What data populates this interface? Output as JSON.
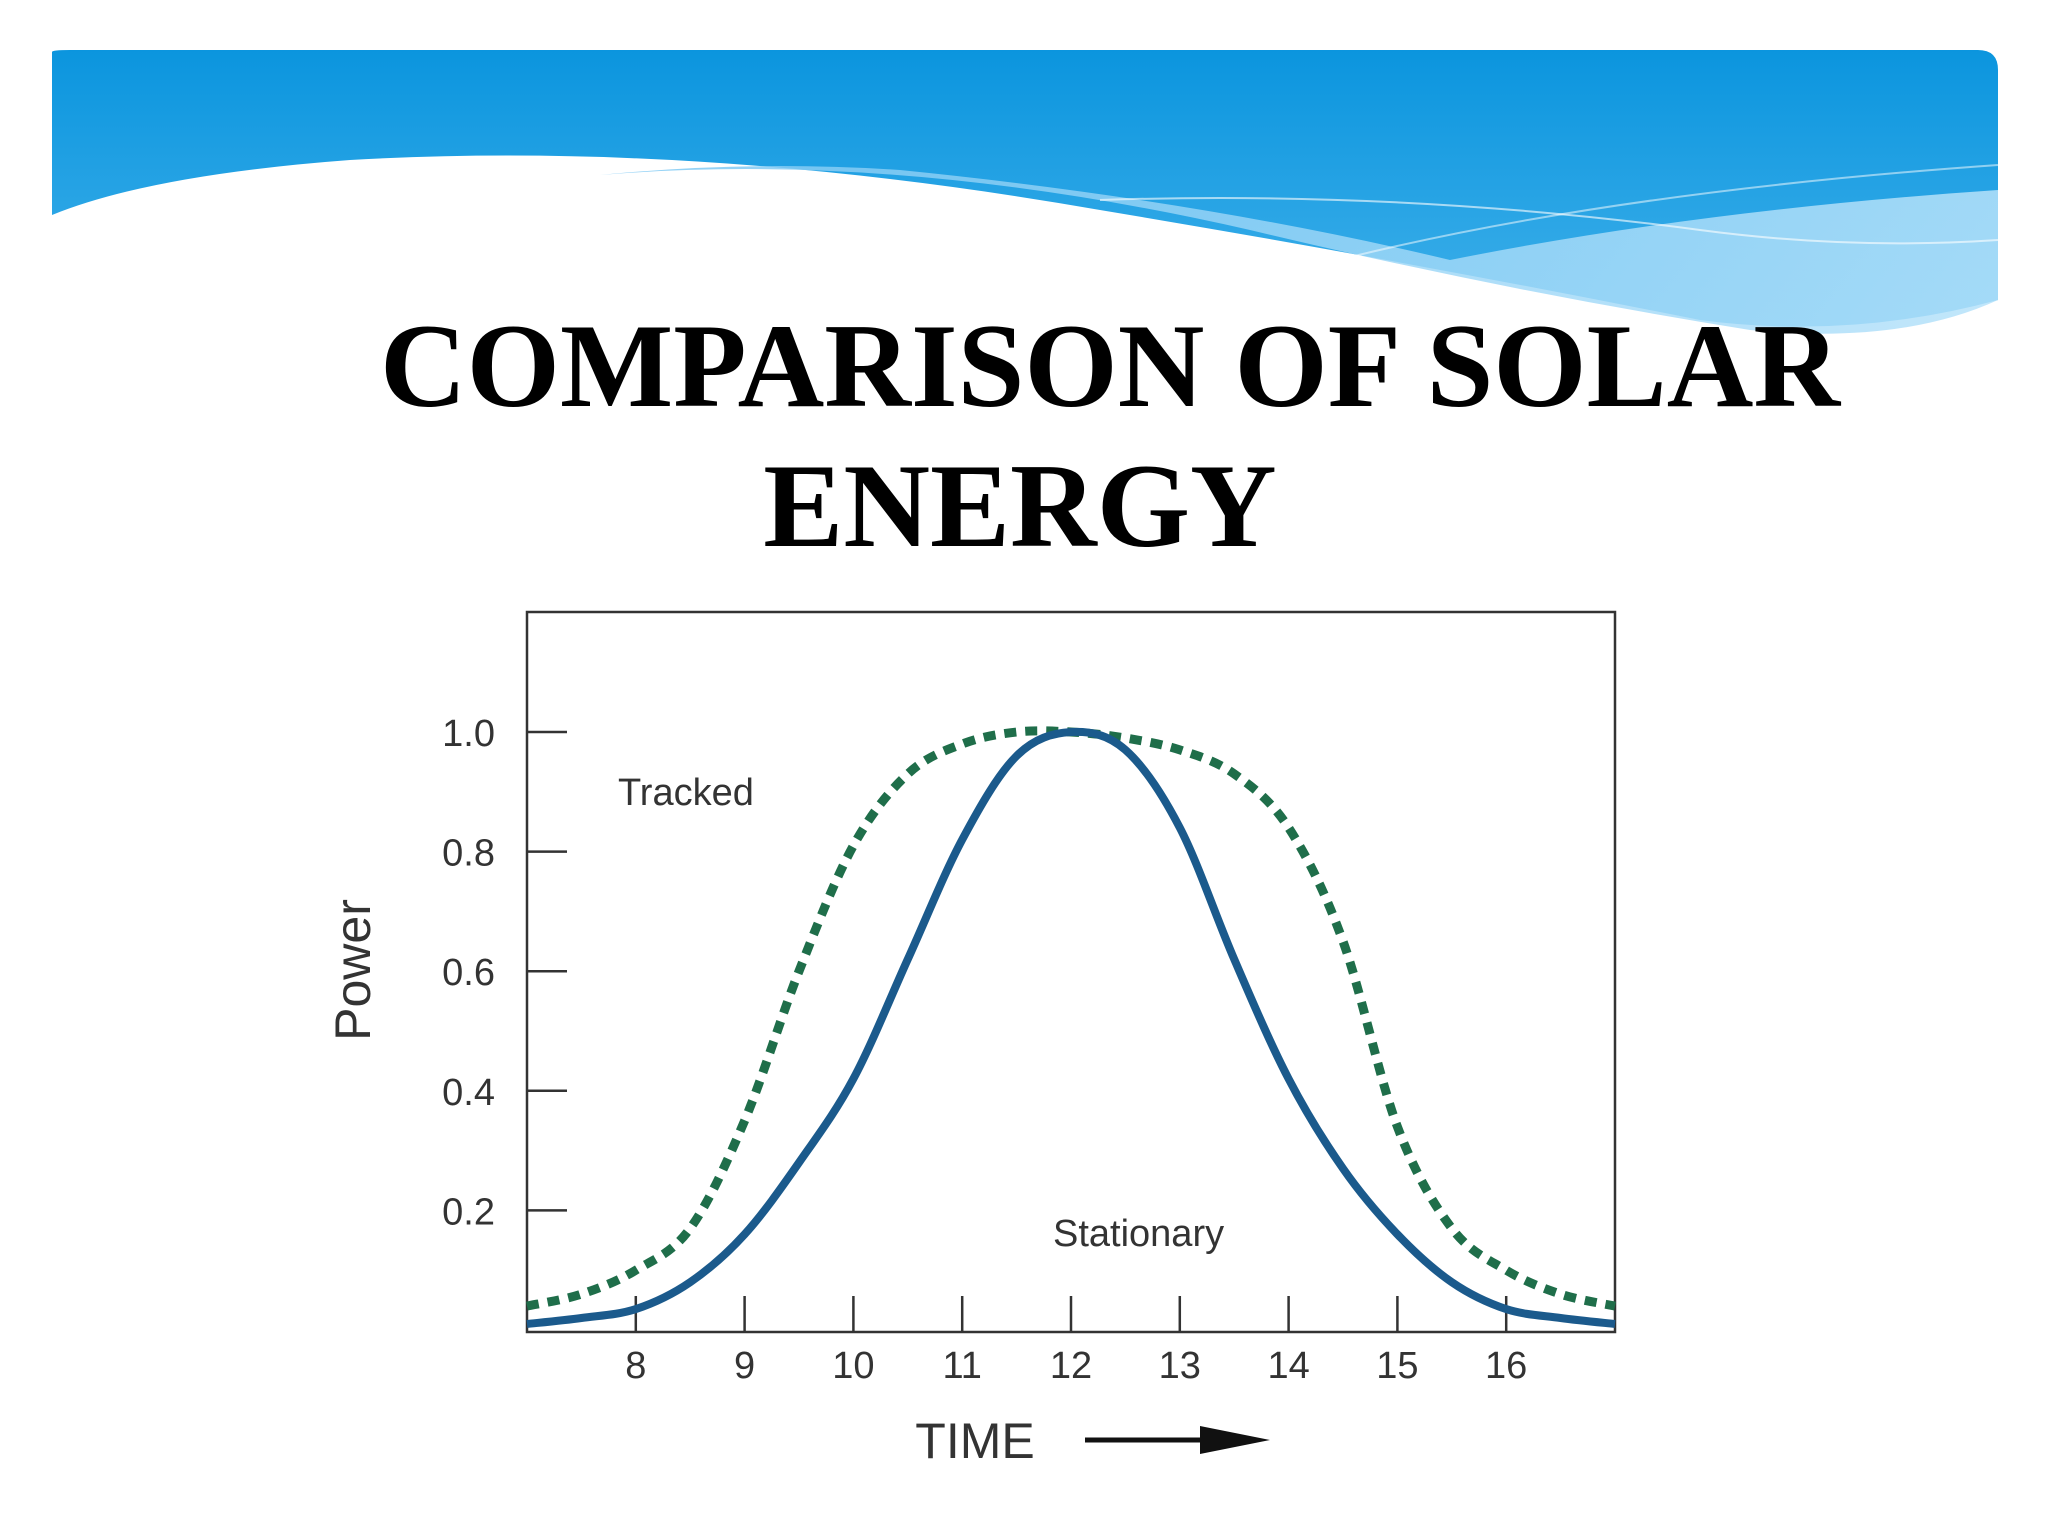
{
  "slide": {
    "title_line1": "COMPARISON OF SOLAR",
    "title_line2": "ENERGY",
    "colors": {
      "banner_dark": "#0b95de",
      "banner_light": "#8fd0f6",
      "background": "#ffffff",
      "title": "#000000"
    }
  },
  "chart_data": {
    "type": "line",
    "xlabel": "TIME",
    "ylabel": "Power",
    "xlim": [
      7,
      17
    ],
    "ylim": [
      0,
      1.2
    ],
    "x_ticks": [
      8,
      9,
      10,
      11,
      12,
      13,
      14,
      15,
      16
    ],
    "y_ticks": [
      0.2,
      0.4,
      0.6,
      0.8,
      1.0
    ],
    "y_tick_labels": [
      "0.2",
      "0.4",
      "0.6",
      "0.8",
      "1.0"
    ],
    "series": [
      {
        "name": "Tracked",
        "style": "dashed",
        "color": "#1f6e4a",
        "x": [
          7,
          7.5,
          8,
          8.5,
          9,
          9.5,
          10,
          10.5,
          11,
          11.5,
          12,
          12.5,
          13,
          13.5,
          14,
          14.5,
          15,
          15.5,
          16,
          16.5,
          17
        ],
        "y": [
          0.04,
          0.06,
          0.1,
          0.17,
          0.35,
          0.6,
          0.81,
          0.93,
          0.98,
          1.0,
          1.0,
          0.99,
          0.97,
          0.93,
          0.84,
          0.65,
          0.34,
          0.17,
          0.1,
          0.06,
          0.04
        ]
      },
      {
        "name": "Stationary",
        "style": "solid",
        "color": "#1b5a8c",
        "x": [
          7,
          7.5,
          8,
          8.5,
          9,
          9.5,
          10,
          10.5,
          11,
          11.5,
          12,
          12.5,
          13,
          13.5,
          14,
          14.5,
          15,
          15.5,
          16,
          16.5,
          17
        ],
        "y": [
          0.01,
          0.02,
          0.035,
          0.08,
          0.16,
          0.28,
          0.42,
          0.62,
          0.82,
          0.96,
          1.0,
          0.97,
          0.84,
          0.62,
          0.42,
          0.27,
          0.16,
          0.08,
          0.035,
          0.02,
          0.01
        ]
      }
    ],
    "grid": false,
    "legend": "none"
  }
}
